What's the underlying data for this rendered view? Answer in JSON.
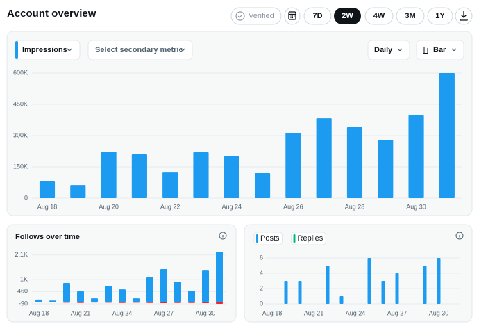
{
  "header": {
    "title": "Account overview"
  },
  "controls": {
    "verified": "Verified",
    "ranges": [
      "7D",
      "2W",
      "4W",
      "3M",
      "1Y"
    ]
  },
  "toolbar": {
    "metric": "Impressions",
    "secondary": "Select secondary metric",
    "interval": "Daily",
    "chart_style": "Bar"
  },
  "chart_data": [
    {
      "type": "bar",
      "categories": [
        "Aug 18",
        null,
        "Aug 20",
        null,
        "Aug 22",
        null,
        "Aug 24",
        null,
        "Aug 26",
        null,
        "Aug 28",
        null,
        "Aug 30",
        null
      ],
      "values": [
        80000,
        63000,
        223000,
        210000,
        123000,
        220000,
        200000,
        120000,
        313000,
        383000,
        340000,
        280000,
        397000,
        600000
      ],
      "color": "#1d9bf0",
      "ylim": [
        0,
        600000
      ],
      "yticks": [
        0,
        {
          "value": 150000,
          "label": "150K"
        },
        {
          "value": 300000,
          "label": "300K"
        },
        {
          "value": 450000,
          "label": "450K"
        },
        {
          "value": 600000,
          "label": "600K"
        }
      ],
      "grid": true
    },
    {
      "type": "bar",
      "title": "Follows over time",
      "categories": [
        "Aug 18",
        null,
        null,
        "Aug 21",
        null,
        null,
        "Aug 24",
        null,
        null,
        "Aug 27",
        null,
        null,
        "Aug 30",
        null
      ],
      "series": [
        {
          "color": "#1d9bf0",
          "values": [
            100,
            60,
            845,
            470,
            155,
            720,
            560,
            155,
            1095,
            1470,
            905,
            500,
            1405,
            2250
          ]
        },
        {
          "color": "#f4212e",
          "values": [
            -20,
            -10,
            -40,
            -50,
            -30,
            -40,
            -50,
            -40,
            -50,
            -60,
            -50,
            -50,
            -60,
            -90
          ]
        }
      ],
      "ylim": [
        -90,
        2250
      ],
      "yticks": [
        -90,
        460,
        {
          "value": 1000,
          "label": "1K"
        },
        {
          "value": 2100,
          "label": "2.1K"
        }
      ],
      "grid": true
    },
    {
      "type": "bar",
      "categories": [
        "Aug 18",
        null,
        null,
        "Aug 21",
        null,
        null,
        "Aug 24",
        null,
        null,
        "Aug 27",
        null,
        null,
        "Aug 30",
        null
      ],
      "series": [
        {
          "name": "Posts",
          "color": "#1d9bf0",
          "values": [
            0,
            3,
            3,
            0,
            5,
            1,
            0,
            6,
            3,
            4,
            0,
            5,
            6,
            0
          ]
        },
        {
          "name": "Replies",
          "color": "#00ba7c",
          "values": [
            0,
            0,
            0,
            0,
            0,
            0,
            0,
            0,
            0,
            0,
            0,
            0,
            0,
            0
          ]
        }
      ],
      "ylim": [
        0,
        6
      ],
      "yticks": [
        0,
        2,
        4,
        6
      ],
      "grid": true
    }
  ]
}
